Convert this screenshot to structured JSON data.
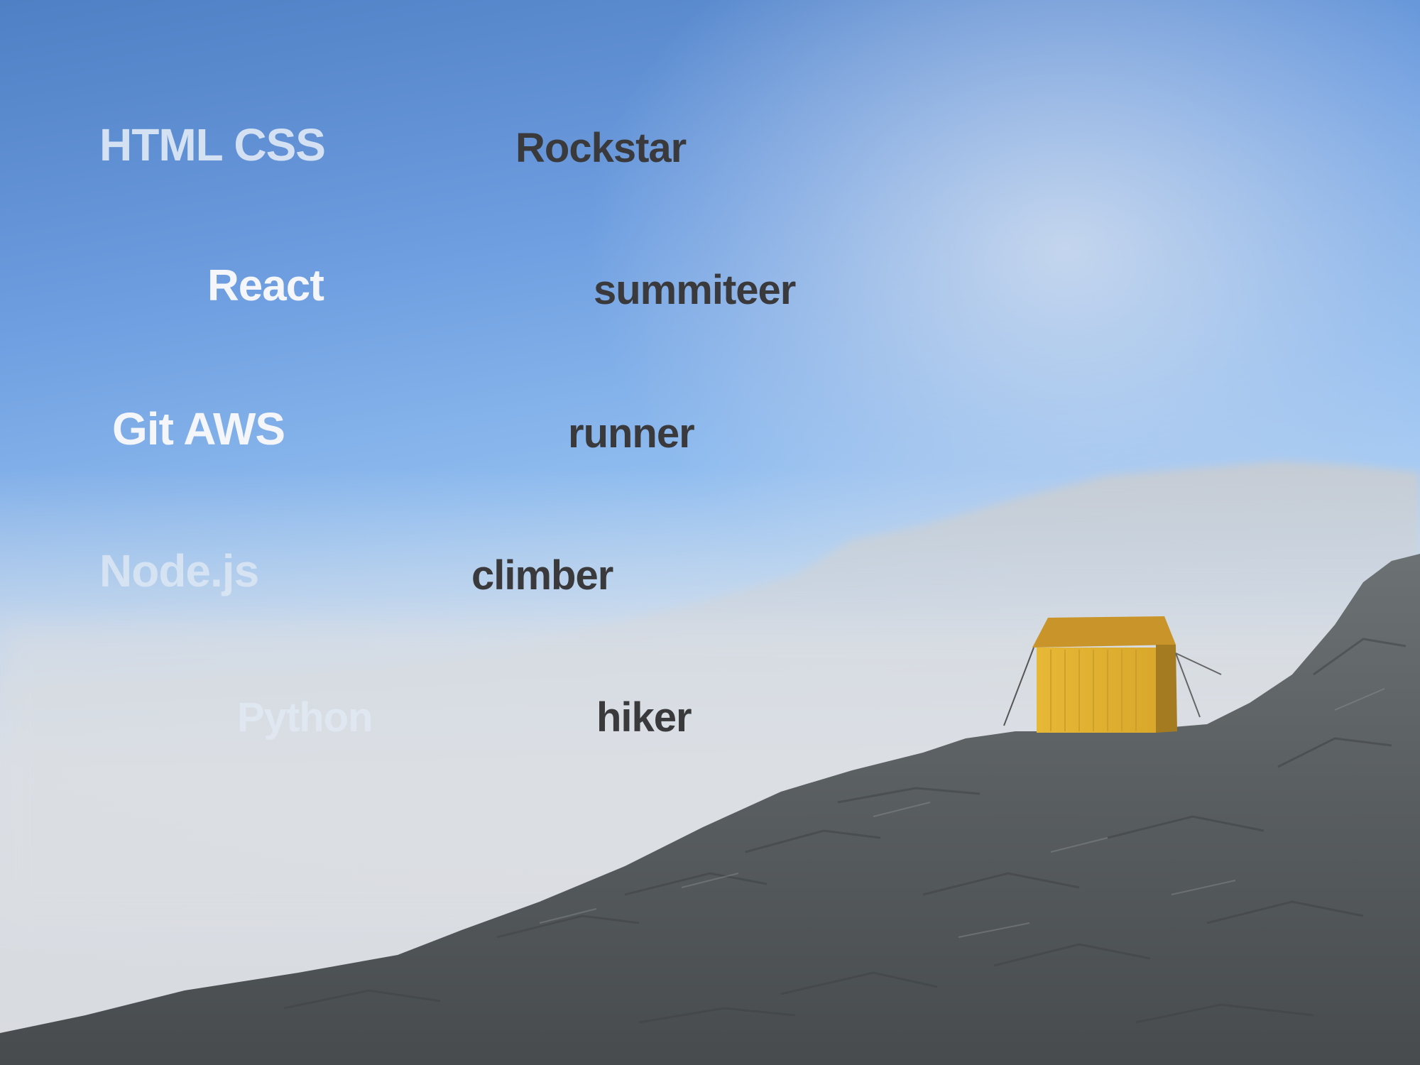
{
  "left_column": {
    "w1": "HTML CSS",
    "w2": "React",
    "w3": "Git AWS",
    "w4": "Node.js",
    "w5": "Python"
  },
  "right_column": {
    "w1": "Rockstar",
    "w2": "summiteer",
    "w3": "runner",
    "w4": "climber",
    "w5": "hiker"
  },
  "colors": {
    "sky_top": "#4f7fc4",
    "fog": "#d8dadf",
    "hut_yellow": "#e8b83a",
    "rock": "#5f6466",
    "dark_text": "#3a3a3c"
  },
  "icons": [
    "mountain-hut-icon"
  ]
}
